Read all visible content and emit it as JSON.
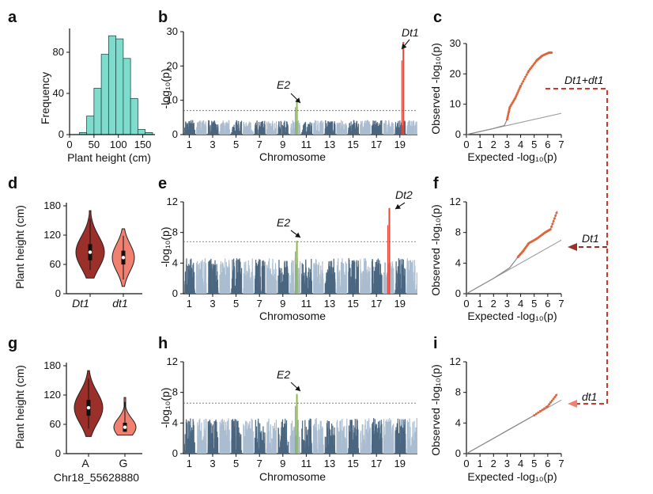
{
  "colors": {
    "teal": "#7fdccd",
    "dark_red": "#9b2f2a",
    "light_red": "#f08070",
    "manhattan_dark": "#4a6680",
    "manhattan_light": "#aabdd0",
    "hit_red": "#e04a3a",
    "hit_green": "#8ab84a",
    "qq_orange": "#e0653a"
  },
  "panels": {
    "a": {
      "letter": "a",
      "chart_data": {
        "type": "bar",
        "title": "",
        "xlabel": "Plant height (cm)",
        "ylabel": "Frequency",
        "categories": [
          "20-35",
          "35-50",
          "50-65",
          "65-80",
          "80-95",
          "95-110",
          "110-125",
          "125-140",
          "140-155",
          "155-170"
        ],
        "values": [
          2,
          18,
          45,
          78,
          96,
          93,
          74,
          35,
          5,
          2
        ],
        "xlim": [
          0,
          175
        ],
        "ylim": [
          0,
          100
        ],
        "xticks": [
          "0",
          "50",
          "100",
          "150"
        ],
        "yticks": [
          "0",
          "40",
          "80"
        ]
      }
    },
    "b": {
      "letter": "b",
      "chart_data": {
        "type": "scatter",
        "subtype": "manhattan",
        "xlabel": "Chromosome",
        "ylabel": "-log₁₀(p)",
        "xticks": [
          "1",
          "3",
          "5",
          "7",
          "9",
          "11",
          "13",
          "15",
          "17",
          "19"
        ],
        "yticks": [
          "0",
          "10",
          "20",
          "30"
        ],
        "ylim": [
          0,
          30
        ],
        "threshold": 7.0,
        "chromosomes": 20,
        "peaks": [
          {
            "label": "E2",
            "chromosome": 10,
            "position": 0.7,
            "value": 10.0,
            "color": "green"
          },
          {
            "label": "Dt1",
            "chromosome": 19,
            "position": 0.8,
            "value": 27.0,
            "color": "red"
          }
        ]
      }
    },
    "c": {
      "letter": "c",
      "chart_data": {
        "type": "line",
        "subtype": "qq",
        "xlabel": "Expected -log₁₀(p)",
        "ylabel": "Observed -log₁₀(p)",
        "xticks": [
          "0",
          "1",
          "2",
          "3",
          "4",
          "5",
          "6",
          "7"
        ],
        "yticks": [
          "0",
          "10",
          "20",
          "30"
        ],
        "xlim": [
          0,
          7
        ],
        "ylim": [
          0,
          30
        ],
        "observed": [
          [
            0,
            0
          ],
          [
            2,
            2
          ],
          [
            2.8,
            3
          ],
          [
            3.0,
            5
          ],
          [
            3.2,
            9
          ],
          [
            3.6,
            12
          ],
          [
            4.0,
            16
          ],
          [
            4.6,
            21
          ],
          [
            5.2,
            24.5
          ],
          [
            5.6,
            26
          ],
          [
            6.1,
            27
          ],
          [
            6.3,
            27
          ]
        ]
      }
    },
    "d": {
      "letter": "d",
      "chart_data": {
        "type": "violin",
        "ylabel": "Plant height (cm)",
        "categories": [
          "Dt1",
          "dt1"
        ],
        "medians": [
          85,
          74
        ],
        "ranges": [
          [
            32,
            170
          ],
          [
            15,
            133
          ]
        ],
        "ylim": [
          0,
          180
        ],
        "yticks": [
          "0",
          "60",
          "120",
          "180"
        ]
      }
    },
    "e": {
      "letter": "e",
      "chart_data": {
        "type": "scatter",
        "subtype": "manhattan",
        "xlabel": "Chromosome",
        "ylabel": "-log₁₀(p)",
        "xticks": [
          "1",
          "3",
          "5",
          "7",
          "9",
          "11",
          "13",
          "15",
          "17",
          "19"
        ],
        "yticks": [
          "0",
          "4",
          "8",
          "12"
        ],
        "ylim": [
          0,
          12
        ],
        "threshold": 6.8,
        "chromosomes": 20,
        "peaks": [
          {
            "label": "E2",
            "chromosome": 10,
            "position": 0.7,
            "value": 6.9,
            "color": "green"
          },
          {
            "label": "Dt2",
            "chromosome": 18,
            "position": 0.6,
            "value": 11.2,
            "color": "red"
          }
        ]
      }
    },
    "f": {
      "letter": "f",
      "chart_data": {
        "type": "line",
        "subtype": "qq",
        "xlabel": "Expected -log₁₀(p)",
        "ylabel": "Observed -log₁₀(p)",
        "xticks": [
          "0",
          "1",
          "2",
          "3",
          "4",
          "5",
          "6",
          "7"
        ],
        "yticks": [
          "0",
          "4",
          "8",
          "12"
        ],
        "xlim": [
          0,
          7
        ],
        "ylim": [
          0,
          12
        ],
        "observed": [
          [
            0,
            0
          ],
          [
            2,
            2
          ],
          [
            3.2,
            3.4
          ],
          [
            3.8,
            4.8
          ],
          [
            4.2,
            5.6
          ],
          [
            4.6,
            6.6
          ],
          [
            5.2,
            7.2
          ],
          [
            5.8,
            8.0
          ],
          [
            6.2,
            8.4
          ],
          [
            6.7,
            10.8
          ]
        ]
      }
    },
    "g": {
      "letter": "g",
      "chart_data": {
        "type": "violin",
        "ylabel": "Plant height (cm)",
        "xlabel": "Chr18_55628880",
        "categories": [
          "A",
          "G"
        ],
        "medians": [
          94,
          54
        ],
        "ranges": [
          [
            35,
            170
          ],
          [
            38,
            115
          ]
        ],
        "ylim": [
          0,
          180
        ],
        "yticks": [
          "0",
          "60",
          "120",
          "180"
        ]
      }
    },
    "h": {
      "letter": "h",
      "chart_data": {
        "type": "scatter",
        "subtype": "manhattan",
        "xlabel": "Chromosome",
        "ylabel": "-log₁₀(p)",
        "xticks": [
          "1",
          "3",
          "5",
          "7",
          "9",
          "11",
          "13",
          "15",
          "17",
          "19"
        ],
        "yticks": [
          "0",
          "4",
          "8",
          "12"
        ],
        "ylim": [
          0,
          12
        ],
        "threshold": 6.6,
        "chromosomes": 20,
        "peaks": [
          {
            "label": "E2",
            "chromosome": 10,
            "position": 0.7,
            "value": 7.8,
            "color": "green"
          }
        ]
      }
    },
    "i": {
      "letter": "i",
      "chart_data": {
        "type": "line",
        "subtype": "qq",
        "xlabel": "Expected -log₁₀(p)",
        "ylabel": "Observed -log₁₀(p)",
        "xticks": [
          "0",
          "1",
          "2",
          "3",
          "4",
          "5",
          "6",
          "7"
        ],
        "yticks": [
          "0",
          "4",
          "8",
          "12"
        ],
        "xlim": [
          0,
          7
        ],
        "ylim": [
          0,
          12
        ],
        "observed": [
          [
            0,
            0
          ],
          [
            2,
            2
          ],
          [
            4,
            4
          ],
          [
            5,
            5
          ],
          [
            6,
            6.2
          ],
          [
            6.7,
            7.8
          ]
        ]
      }
    }
  },
  "legend": {
    "top": "Dt1+dt1",
    "mid": "Dt1",
    "bottom": "dt1"
  }
}
